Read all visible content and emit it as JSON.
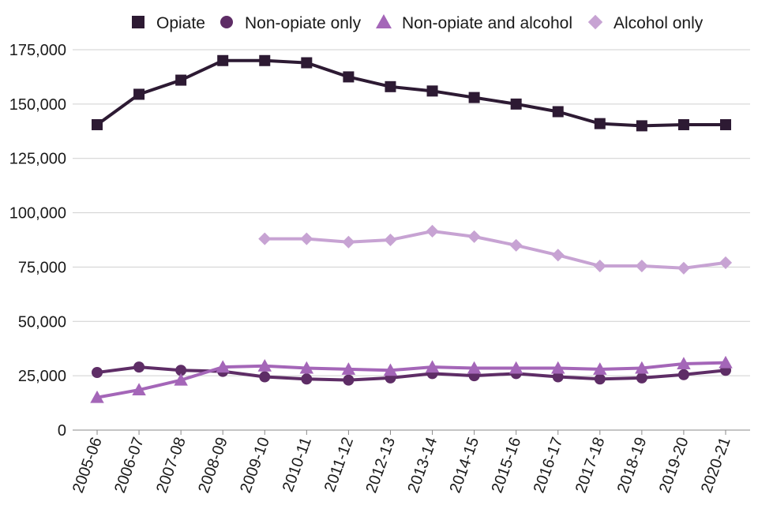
{
  "chart_data": {
    "type": "line",
    "title": "",
    "xlabel": "",
    "ylabel": "",
    "categories": [
      "2005-06",
      "2006-07",
      "2007-08",
      "2008-09",
      "2009-10",
      "2010-11",
      "2011-12",
      "2012-13",
      "2013-14",
      "2014-15",
      "2015-16",
      "2016-17",
      "2017-18",
      "2018-19",
      "2019-20",
      "2020-21"
    ],
    "ylim": [
      0,
      175000
    ],
    "yticks": [
      0,
      25000,
      50000,
      75000,
      100000,
      125000,
      150000,
      175000
    ],
    "ytick_labels": [
      "0",
      "25,000",
      "50,000",
      "75,000",
      "100,000",
      "125,000",
      "150,000",
      "175,000"
    ],
    "grid": "horizontal",
    "legend_position": "top",
    "series": [
      {
        "name": "Opiate",
        "marker": "square",
        "color": "#2d1a33",
        "values": [
          140500,
          154500,
          161000,
          170000,
          170000,
          169000,
          162500,
          158000,
          156000,
          153000,
          150000,
          146500,
          141000,
          140000,
          140500,
          140500
        ]
      },
      {
        "name": "Non-opiate only",
        "marker": "circle",
        "color": "#5e2d66",
        "values": [
          26500,
          29000,
          27500,
          27000,
          24500,
          23500,
          23000,
          24000,
          26000,
          25000,
          26000,
          24500,
          23500,
          24000,
          25500,
          27500
        ]
      },
      {
        "name": "Non-opiate and alcohol",
        "marker": "triangle",
        "color": "#a466b8",
        "values": [
          15000,
          18500,
          23000,
          29000,
          29500,
          28500,
          28000,
          27500,
          29000,
          28500,
          28500,
          28500,
          28000,
          28500,
          30500,
          31000
        ]
      },
      {
        "name": "Alcohol only",
        "marker": "diamond",
        "color": "#c7a3d3",
        "values": [
          null,
          null,
          null,
          null,
          88000,
          88000,
          86500,
          87500,
          91500,
          89000,
          85000,
          80500,
          75500,
          75500,
          74500,
          77000
        ]
      }
    ]
  }
}
